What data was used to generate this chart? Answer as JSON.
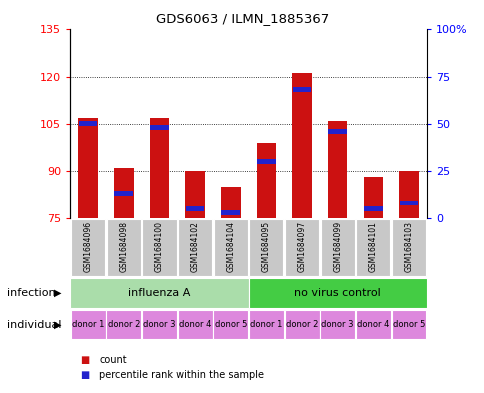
{
  "title": "GDS6063 / ILMN_1885367",
  "samples": [
    "GSM1684096",
    "GSM1684098",
    "GSM1684100",
    "GSM1684102",
    "GSM1684104",
    "GSM1684095",
    "GSM1684097",
    "GSM1684099",
    "GSM1684101",
    "GSM1684103"
  ],
  "red_values": [
    107,
    91,
    107,
    90,
    85,
    99,
    121,
    106,
    88,
    90
  ],
  "blue_percentiles": [
    50,
    13,
    48,
    5,
    3,
    30,
    68,
    46,
    5,
    8
  ],
  "ylim_left": [
    75,
    135
  ],
  "ylim_right": [
    0,
    100
  ],
  "yticks_left": [
    75,
    90,
    105,
    120,
    135
  ],
  "yticks_right": [
    0,
    25,
    50,
    75,
    100
  ],
  "ytick_labels_left": [
    "75",
    "90",
    "105",
    "120",
    "135"
  ],
  "ytick_labels_right": [
    "0",
    "25",
    "50",
    "75",
    "100%"
  ],
  "infection_groups": [
    {
      "label": "influenza A",
      "color": "#aaddaa"
    },
    {
      "label": "no virus control",
      "color": "#44cc44"
    }
  ],
  "individual_labels": [
    "donor 1",
    "donor 2",
    "donor 3",
    "donor 4",
    "donor 5",
    "donor 1",
    "donor 2",
    "donor 3",
    "donor 4",
    "donor 5"
  ],
  "individual_color": "#dd88dd",
  "bar_color_red": "#cc1111",
  "bar_color_blue": "#2222cc",
  "bar_width": 0.55,
  "legend_items": [
    {
      "label": "count",
      "color": "#cc1111"
    },
    {
      "label": "percentile rank within the sample",
      "color": "#2222cc"
    }
  ],
  "infection_label": "infection",
  "individual_label": "individual",
  "sample_bg_color": "#c8c8c8"
}
